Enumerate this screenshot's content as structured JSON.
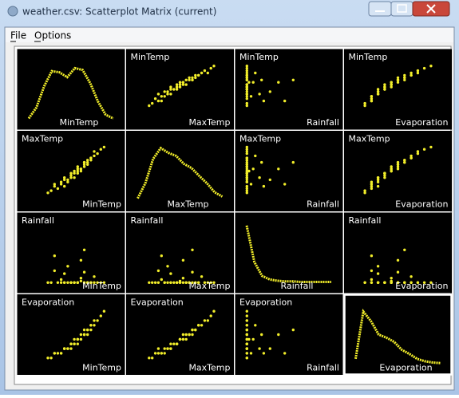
{
  "window": {
    "title": "weather.csv: Scatterplot Matrix (current)"
  },
  "menu": [
    "File",
    "Options"
  ],
  "matrix": {
    "point_color": "#f2ee2a",
    "selected": 3,
    "variables": [
      {
        "name": "MinTemp",
        "lim": [
          -6,
          22
        ],
        "values": [
          8,
          12,
          5,
          14,
          10,
          3,
          16,
          9,
          11,
          7,
          13,
          6,
          15,
          2,
          10,
          12,
          8,
          17,
          4,
          11,
          9,
          14,
          6,
          13,
          1,
          10,
          7,
          12,
          15,
          5,
          11,
          9,
          18,
          8,
          3,
          13,
          10,
          6,
          14,
          12
        ],
        "density": [
          0.02,
          0.2,
          0.55,
          0.8,
          0.78,
          0.7,
          0.85,
          0.82,
          0.6,
          0.3,
          0.08,
          0.02
        ]
      },
      {
        "name": "MaxTemp",
        "lim": [
          6,
          36
        ],
        "values": [
          18,
          24,
          15,
          27,
          20,
          14,
          29,
          21,
          22,
          16,
          26,
          17,
          28,
          12,
          23,
          25,
          19,
          31,
          13,
          21,
          20,
          26,
          18,
          24,
          11,
          22,
          17,
          23,
          30,
          16,
          22,
          18,
          32,
          20,
          15,
          25,
          21,
          14,
          27,
          25
        ],
        "density": [
          0.05,
          0.3,
          0.7,
          0.88,
          0.8,
          0.75,
          0.62,
          0.55,
          0.42,
          0.3,
          0.15,
          0.08
        ]
      },
      {
        "name": "Rainfall",
        "lim": [
          -2,
          42
        ],
        "values": [
          0,
          0,
          2,
          0,
          0,
          8,
          0,
          0,
          15,
          0,
          0,
          0,
          4,
          0,
          0,
          22,
          0,
          0,
          0,
          1,
          0,
          0,
          6,
          0,
          0,
          0,
          11,
          0,
          0,
          0,
          3,
          0,
          0,
          0,
          18,
          0,
          0,
          0,
          0,
          7
        ],
        "density": [
          0.95,
          0.35,
          0.12,
          0.06,
          0.04,
          0.03,
          0.03,
          0.02,
          0.02,
          0.02,
          0.02,
          0.02
        ]
      },
      {
        "name": "Evaporation",
        "lim": [
          -1,
          13
        ],
        "values": [
          3,
          6,
          2,
          8,
          4,
          2,
          9,
          5,
          6,
          3,
          7,
          3,
          8,
          1,
          5,
          7,
          4,
          10,
          2,
          5,
          4,
          7,
          3,
          6,
          1,
          5,
          3,
          6,
          9,
          2,
          5,
          4,
          11,
          4,
          2,
          7,
          5,
          3,
          8,
          6
        ],
        "density": [
          0.1,
          0.88,
          0.72,
          0.5,
          0.45,
          0.38,
          0.25,
          0.18,
          0.1,
          0.06,
          0.04,
          0.03
        ]
      }
    ]
  }
}
